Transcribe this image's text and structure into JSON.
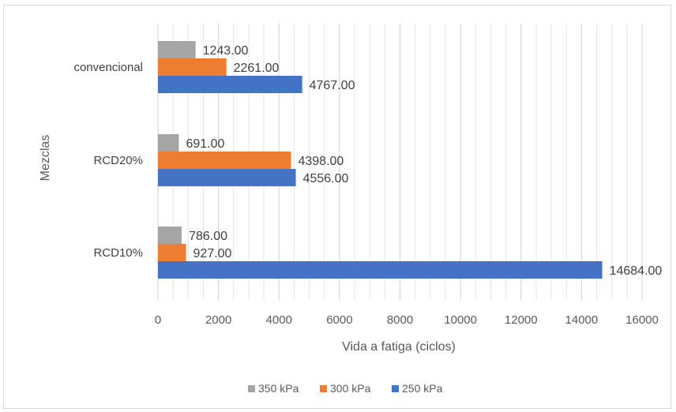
{
  "chart_data": {
    "type": "bar",
    "orientation": "horizontal",
    "xlabel": "Vida a fatiga (ciclos)",
    "ylabel": "Mezclas",
    "xlim": [
      0,
      16000
    ],
    "xticks": [
      0,
      2000,
      4000,
      6000,
      8000,
      10000,
      12000,
      14000,
      16000
    ],
    "grid": true,
    "legend_position": "bottom",
    "categories": [
      "convencional",
      "RCD20%",
      "RCD10%"
    ],
    "series": [
      {
        "name": "350 kPa",
        "color": "#a5a5a5",
        "values": [
          1243,
          691,
          786
        ],
        "labels": [
          "1243.00",
          "691.00",
          "786.00"
        ]
      },
      {
        "name": "300 kPa",
        "color": "#ed7d31",
        "values": [
          2261,
          4398,
          927
        ],
        "labels": [
          "2261.00",
          "4398.00",
          "927.00"
        ]
      },
      {
        "name": "250 kPa",
        "color": "#4472c4",
        "values": [
          4767,
          4556,
          14684
        ],
        "labels": [
          "4767.00",
          "4556.00",
          "14684.00"
        ]
      }
    ]
  }
}
